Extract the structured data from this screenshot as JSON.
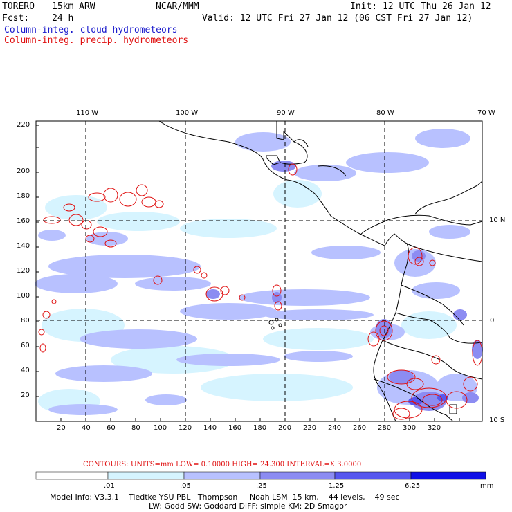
{
  "header": {
    "model": "TORERO",
    "resolution": "15km ARW",
    "org": "NCAR/MMM",
    "init": "Init: 12 UTC Thu 26 Jan 12",
    "fcst_label": "Fcst:",
    "fcst_value": "24 h",
    "valid": "Valid: 12 UTC Fri 27 Jan 12 (06 CST Fri 27 Jan 12)",
    "line_blue": "Column-integ. cloud hydrometeors",
    "line_red": "Column-integ. precip. hydrometeors"
  },
  "map": {
    "lon_labels": [
      "110 W",
      "100 W",
      "90 W",
      "80 W",
      "70 W"
    ],
    "lat_labels": [
      "10 N",
      "0",
      "10 S"
    ],
    "x_ticks": [
      "20",
      "40",
      "60",
      "80",
      "100",
      "120",
      "140",
      "160",
      "180",
      "200",
      "220",
      "240",
      "260",
      "280",
      "300",
      "320"
    ],
    "y_ticks": [
      "20",
      "40",
      "60",
      "80",
      "100",
      "120",
      "140",
      "160",
      "180",
      "200",
      "220"
    ],
    "colors": {
      "fill_c1": "#d6f4ff",
      "fill_c2": "#b8c1ff",
      "fill_c3": "#8c8cf2",
      "fill_c4": "#5757ee",
      "contour": "#e01010",
      "coast": "#000000"
    }
  },
  "contours": {
    "text": "CONTOURS:  UNITS=mm  LOW= 0.10000      HIGH=  24.300      INTERVAL=X  3.0000"
  },
  "colorbar": {
    "labels": [
      ".01",
      ".05",
      ".25",
      "1.25",
      "6.25"
    ],
    "unit": "mm",
    "colors": [
      "#ffffff",
      "#d6f4ff",
      "#b8c1ff",
      "#8c8cf2",
      "#5757ee",
      "#1010e6"
    ]
  },
  "model_info": {
    "line1": "Model Info: V3.3.1    Tiedtke YSU PBL   Thompson     Noah LSM  15 km,    44 levels,    49 sec",
    "line2": "LW: Godd SW: Goddard DIFF: simple KM: 2D Smagor"
  }
}
